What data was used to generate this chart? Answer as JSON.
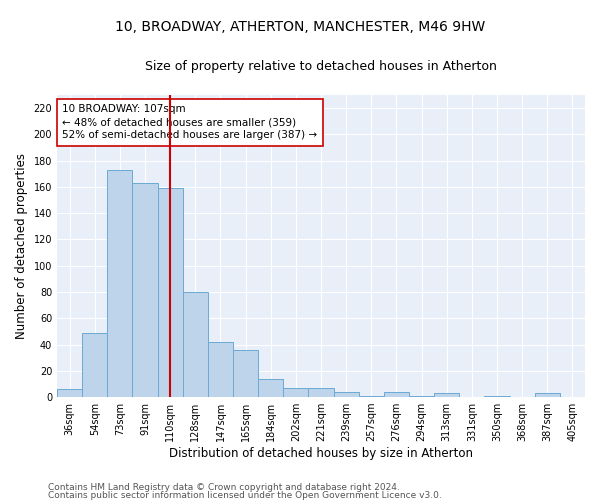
{
  "title_line1": "10, BROADWAY, ATHERTON, MANCHESTER, M46 9HW",
  "title_line2": "Size of property relative to detached houses in Atherton",
  "xlabel": "Distribution of detached houses by size in Atherton",
  "ylabel": "Number of detached properties",
  "categories": [
    "36sqm",
    "54sqm",
    "73sqm",
    "91sqm",
    "110sqm",
    "128sqm",
    "147sqm",
    "165sqm",
    "184sqm",
    "202sqm",
    "221sqm",
    "239sqm",
    "257sqm",
    "276sqm",
    "294sqm",
    "313sqm",
    "331sqm",
    "350sqm",
    "368sqm",
    "387sqm",
    "405sqm"
  ],
  "values": [
    6,
    49,
    173,
    163,
    159,
    80,
    42,
    36,
    14,
    7,
    7,
    4,
    1,
    4,
    1,
    3,
    0,
    1,
    0,
    3,
    0
  ],
  "bar_color": "#bdd4ea",
  "bar_edge_color": "#6aaad4",
  "vline_x_idx": 4,
  "vline_color": "#cc0000",
  "annotation_text": "10 BROADWAY: 107sqm\n← 48% of detached houses are smaller (359)\n52% of semi-detached houses are larger (387) →",
  "ylim": [
    0,
    230
  ],
  "yticks": [
    0,
    20,
    40,
    60,
    80,
    100,
    120,
    140,
    160,
    180,
    200,
    220
  ],
  "background_color": "#e8eff9",
  "grid_color": "#ffffff",
  "footer_line1": "Contains HM Land Registry data © Crown copyright and database right 2024.",
  "footer_line2": "Contains public sector information licensed under the Open Government Licence v3.0.",
  "title_fontsize": 10,
  "subtitle_fontsize": 9,
  "axis_label_fontsize": 8.5,
  "tick_fontsize": 7,
  "annotation_fontsize": 7.5,
  "footer_fontsize": 6.5
}
